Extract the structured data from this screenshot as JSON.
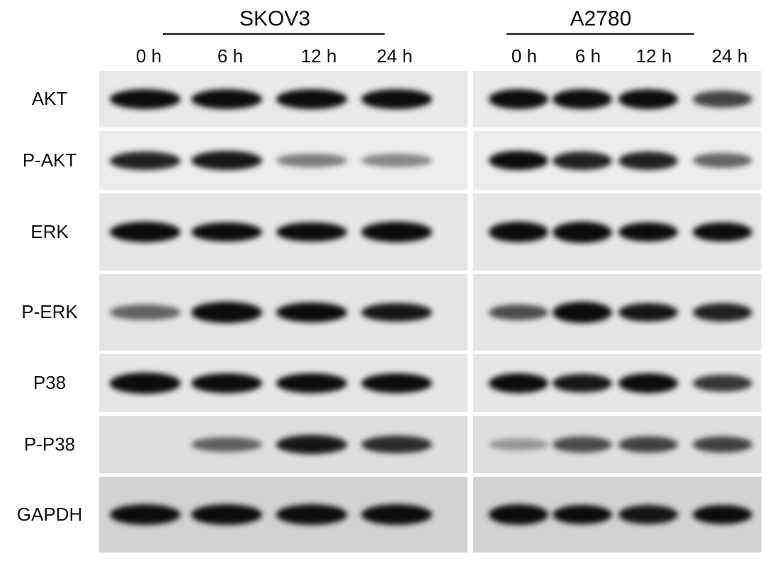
{
  "cell_lines": [
    {
      "name": "SKOV3",
      "times": [
        "0 h",
        "6 h",
        "12 h",
        "24 h"
      ]
    },
    {
      "name": "A2780",
      "times": [
        "0 h",
        "6 h",
        "12 h",
        "24 h"
      ]
    }
  ],
  "rows": [
    {
      "label": "AKT",
      "band_intensity": {
        "SKOV3": [
          0.9,
          0.9,
          0.85,
          0.85
        ],
        "A2780": [
          0.85,
          0.85,
          0.85,
          0.6
        ]
      }
    },
    {
      "label": "P-AKT",
      "band_intensity": {
        "SKOV3": [
          0.75,
          0.8,
          0.35,
          0.3
        ],
        "A2780": [
          0.85,
          0.75,
          0.75,
          0.45
        ]
      }
    },
    {
      "label": "ERK",
      "band_intensity": {
        "SKOV3": [
          0.95,
          0.85,
          0.85,
          0.9
        ],
        "A2780": [
          0.9,
          1.0,
          0.85,
          0.85
        ]
      }
    },
    {
      "label": "P-ERK",
      "band_intensity": {
        "SKOV3": [
          0.45,
          0.95,
          0.85,
          0.8
        ],
        "A2780": [
          0.55,
          1.0,
          0.8,
          0.75
        ]
      }
    },
    {
      "label": "P38",
      "band_intensity": {
        "SKOV3": [
          0.95,
          0.9,
          0.85,
          0.9
        ],
        "A2780": [
          0.9,
          0.8,
          0.85,
          0.65
        ]
      }
    },
    {
      "label": "P-P38",
      "band_intensity": {
        "SKOV3": [
          0.0,
          0.45,
          0.8,
          0.7
        ],
        "A2780": [
          0.2,
          0.55,
          0.6,
          0.6
        ]
      }
    },
    {
      "label": "GAPDH",
      "band_intensity": {
        "SKOV3": [
          0.95,
          0.9,
          0.9,
          0.95
        ],
        "A2780": [
          0.9,
          0.85,
          0.8,
          0.85
        ]
      }
    }
  ]
}
